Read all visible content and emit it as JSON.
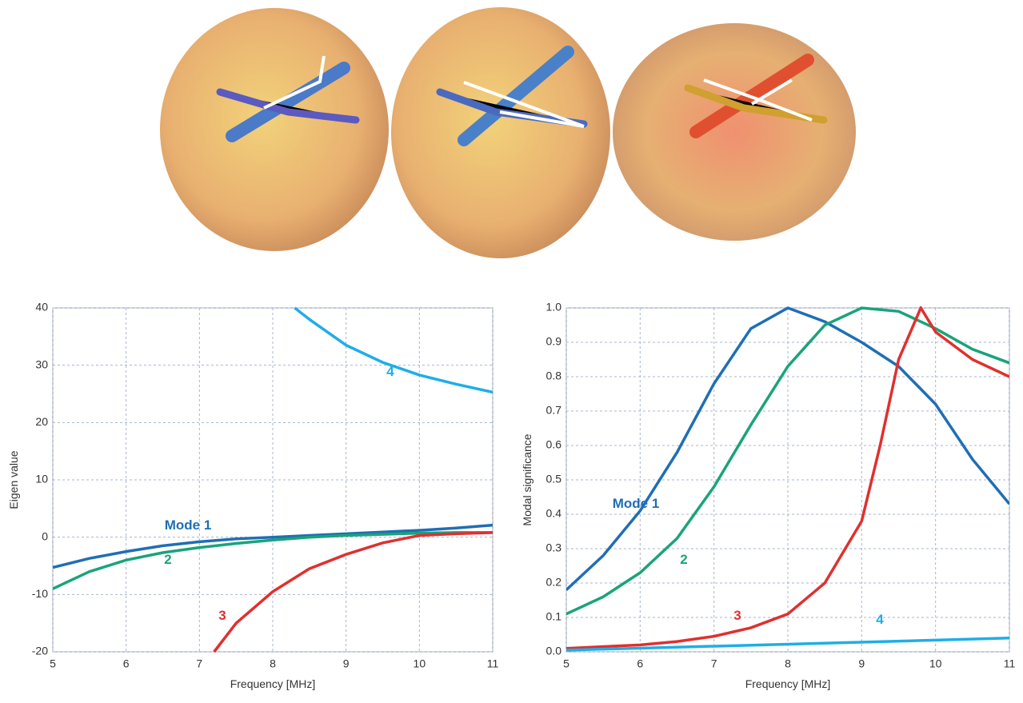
{
  "chart_data": [
    {
      "type": "line",
      "xlabel": "Frequency [MHz]",
      "ylabel": "Eigen value",
      "xlim": [
        5,
        11
      ],
      "xticks": [
        5,
        6,
        7,
        8,
        9,
        10,
        11
      ],
      "ylim": [
        -20,
        40
      ],
      "yticks": [
        -20,
        -10,
        0,
        10,
        20,
        30,
        40
      ],
      "grid": true,
      "series": [
        {
          "name": "Mode 1",
          "color": "#1f6eb5",
          "x": [
            5,
            5.5,
            6,
            6.5,
            7,
            7.5,
            8,
            8.5,
            9,
            9.5,
            10,
            10.5,
            11
          ],
          "values": [
            -5.3,
            -3.7,
            -2.5,
            -1.5,
            -0.8,
            -0.3,
            0,
            0.3,
            0.6,
            0.9,
            1.2,
            1.6,
            2.1
          ]
        },
        {
          "name": "2",
          "color": "#1aa37a",
          "x": [
            5,
            5.5,
            6,
            6.5,
            7,
            7.5,
            8,
            8.5,
            9,
            9.5,
            10,
            10.5,
            11
          ],
          "values": [
            -9,
            -6,
            -4,
            -2.7,
            -1.8,
            -1.1,
            -0.5,
            0,
            0.3,
            0.5,
            0.7,
            0.8,
            0.8
          ]
        },
        {
          "name": "3",
          "color": "#e0302e",
          "x": [
            7.2,
            7.5,
            8,
            8.5,
            9,
            9.5,
            10,
            10.5,
            11
          ],
          "values": [
            -20,
            -15,
            -9.5,
            -5.5,
            -3,
            -1,
            0.3,
            0.6,
            0.8
          ]
        },
        {
          "name": "4",
          "color": "#1eaee8",
          "x": [
            8.3,
            8.5,
            9,
            9.5,
            10,
            10.5,
            11
          ],
          "values": [
            40,
            38,
            33.5,
            30.5,
            28.3,
            26.7,
            25.3
          ]
        }
      ]
    },
    {
      "type": "line",
      "xlabel": "Frequency [MHz]",
      "ylabel": "Modal significance",
      "xlim": [
        5,
        11
      ],
      "xticks": [
        5,
        6,
        7,
        8,
        9,
        10,
        11
      ],
      "ylim": [
        0,
        1
      ],
      "yticks": [
        {
          "value": 0,
          "label": "0.0"
        },
        0.1,
        0.2,
        0.3,
        0.4,
        0.5,
        0.6,
        0.7,
        0.8,
        0.9,
        {
          "value": 1,
          "label": "1.0"
        }
      ],
      "grid": true,
      "series": [
        {
          "name": "Mode 1",
          "color": "#1f6eb5",
          "x": [
            5,
            5.5,
            6,
            6.5,
            7,
            7.5,
            8,
            8.5,
            9,
            9.5,
            10,
            10.5,
            11
          ],
          "values": [
            0.18,
            0.28,
            0.41,
            0.58,
            0.78,
            0.94,
            1.0,
            0.96,
            0.9,
            0.83,
            0.72,
            0.56,
            0.43
          ]
        },
        {
          "name": "2",
          "color": "#1aa37a",
          "x": [
            5,
            5.5,
            6,
            6.5,
            7,
            7.5,
            8,
            8.5,
            9,
            9.5,
            10,
            10.5,
            11
          ],
          "values": [
            0.11,
            0.16,
            0.23,
            0.33,
            0.48,
            0.66,
            0.83,
            0.95,
            1.0,
            0.99,
            0.94,
            0.88,
            0.84
          ]
        },
        {
          "name": "3",
          "color": "#e0302e",
          "x": [
            5,
            5.5,
            6,
            6.5,
            7,
            7.5,
            8,
            8.5,
            9,
            9.25,
            9.5,
            9.8,
            10,
            10.5,
            11
          ],
          "values": [
            0.01,
            0.015,
            0.02,
            0.03,
            0.045,
            0.07,
            0.11,
            0.2,
            0.38,
            0.6,
            0.85,
            1.0,
            0.93,
            0.85,
            0.8
          ]
        },
        {
          "name": "4",
          "color": "#1eaee8",
          "x": [
            5,
            8,
            11
          ],
          "values": [
            0.005,
            0.022,
            0.04
          ]
        }
      ]
    }
  ]
}
